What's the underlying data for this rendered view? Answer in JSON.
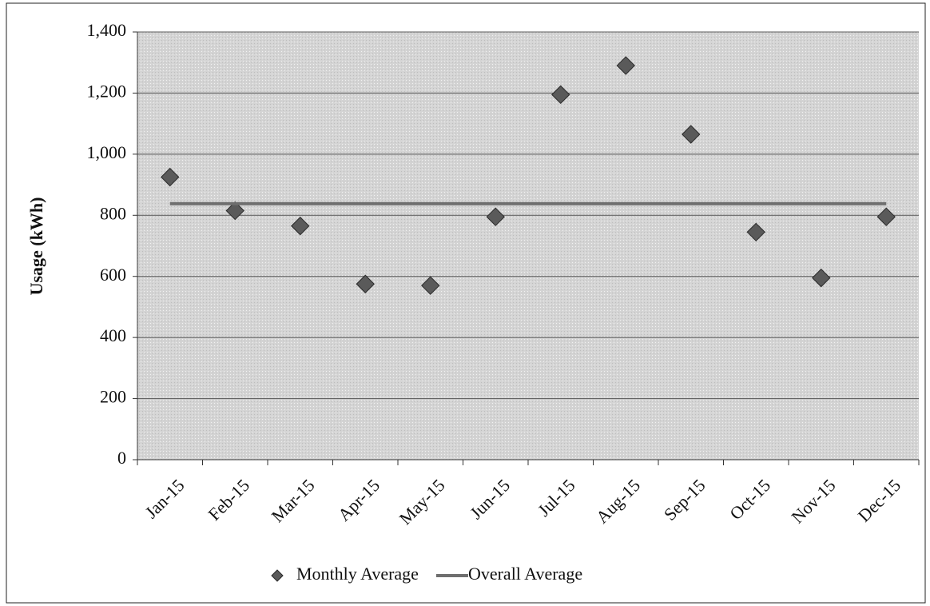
{
  "chart_data": {
    "type": "line",
    "y_label": "Usage (kWh)",
    "categories": [
      "Jan-15",
      "Feb-15",
      "Mar-15",
      "Apr-15",
      "May-15",
      "Jun-15",
      "Jul-15",
      "Aug-15",
      "Sep-15",
      "Oct-15",
      "Nov-15",
      "Dec-15"
    ],
    "series": [
      {
        "name": "Monthly Average",
        "color": "#5a5a5a",
        "mark": "diamond",
        "values": [
          925,
          815,
          765,
          575,
          570,
          795,
          1195,
          1290,
          1065,
          745,
          595,
          795
        ]
      },
      {
        "name": "Overall Average",
        "color": "#6e6e6e",
        "mark": "line",
        "values": [
          838,
          838,
          838,
          838,
          838,
          838,
          838,
          838,
          838,
          838,
          838,
          838
        ]
      }
    ],
    "ylim": [
      0,
      1400
    ],
    "yticks": [
      0,
      200,
      400,
      600,
      800,
      {
        "value": 1000,
        "label": "1,000"
      },
      {
        "value": 1200,
        "label": "1,200"
      },
      {
        "value": 1400,
        "label": "1,400"
      }
    ],
    "grid": true,
    "legend": "bottom"
  }
}
